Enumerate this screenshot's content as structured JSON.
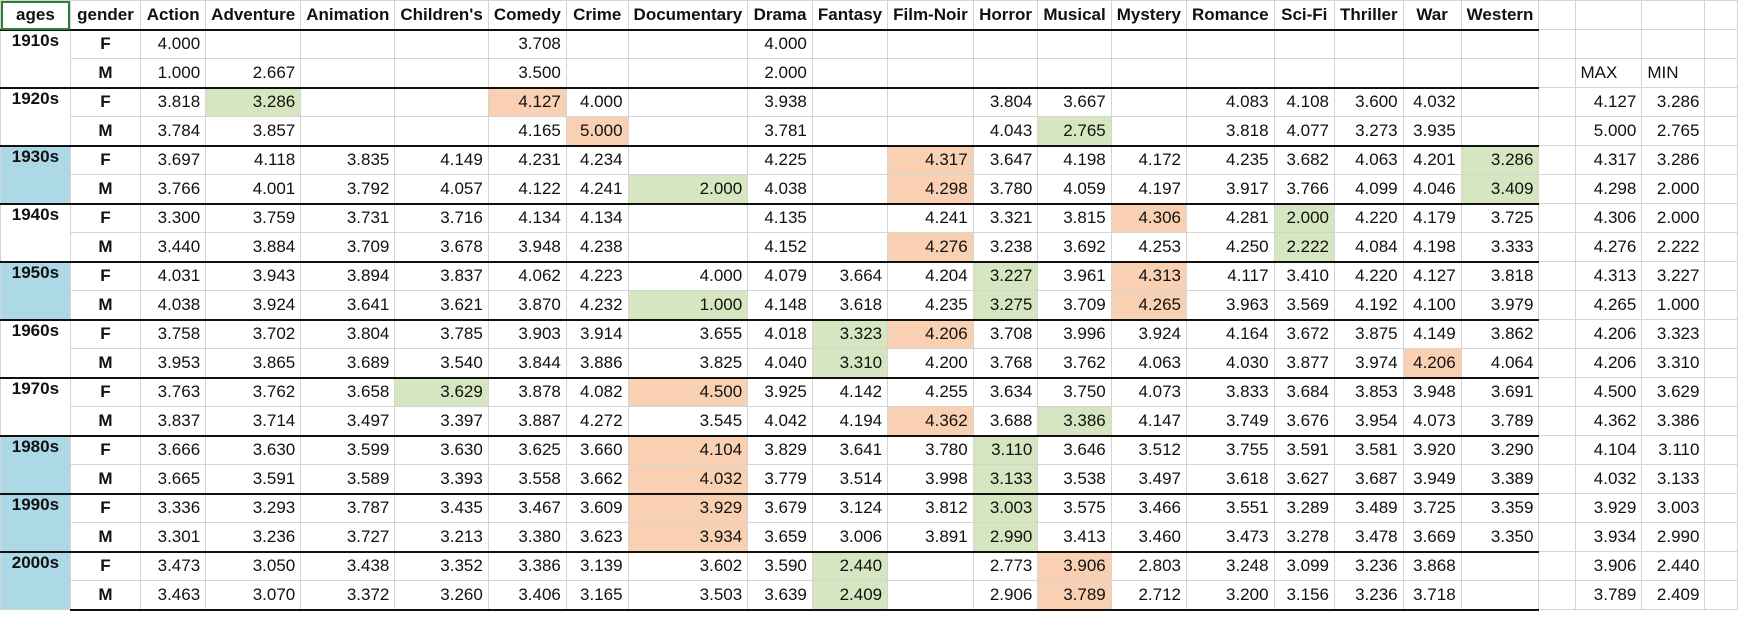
{
  "colors": {
    "high": "#f9d0b1",
    "low": "#d5e6c0",
    "decade_highlight": "#add8e6",
    "block_border": "#111111",
    "gridline": "#d4d4d4"
  },
  "headers": [
    "ages",
    "gender",
    "Action",
    "Adventure",
    "Animation",
    "Children's",
    "Comedy",
    "Crime",
    "Documentary",
    "Drama",
    "Fantasy",
    "Film-Noir",
    "Horror",
    "Musical",
    "Mystery",
    "Romance",
    "Sci-Fi",
    "Thriller",
    "War",
    "Western"
  ],
  "stat_labels": {
    "max": "MAX",
    "min": "MIN"
  },
  "decades": [
    {
      "label": "1910s",
      "highlight": false,
      "rows": [
        {
          "gender": "F",
          "values": [
            "4.000",
            "",
            "",
            "",
            "3.708",
            "",
            "",
            "4.000",
            "",
            "",
            "",
            "",
            "",
            "",
            "",
            "",
            "",
            ""
          ],
          "marks": {},
          "max": "",
          "min": ""
        },
        {
          "gender": "M",
          "values": [
            "1.000",
            "2.667",
            "",
            "",
            "3.500",
            "",
            "",
            "2.000",
            "",
            "",
            "",
            "",
            "",
            "",
            "",
            "",
            "",
            ""
          ],
          "marks": {},
          "max": "",
          "min": ""
        }
      ]
    },
    {
      "label": "1920s",
      "highlight": false,
      "rows": [
        {
          "gender": "F",
          "values": [
            "3.818",
            "3.286",
            "",
            "",
            "4.127",
            "4.000",
            "",
            "3.938",
            "",
            "",
            "3.804",
            "3.667",
            "",
            "4.083",
            "4.108",
            "3.600",
            "4.032",
            ""
          ],
          "marks": {
            "1": "low",
            "4": "high"
          },
          "max": "4.127",
          "min": "3.286"
        },
        {
          "gender": "M",
          "values": [
            "3.784",
            "3.857",
            "",
            "",
            "4.165",
            "5.000",
            "",
            "3.781",
            "",
            "",
            "4.043",
            "2.765",
            "",
            "3.818",
            "4.077",
            "3.273",
            "3.935",
            ""
          ],
          "marks": {
            "5": "high",
            "11": "low"
          },
          "max": "5.000",
          "min": "2.765"
        }
      ]
    },
    {
      "label": "1930s",
      "highlight": true,
      "rows": [
        {
          "gender": "F",
          "values": [
            "3.697",
            "4.118",
            "3.835",
            "4.149",
            "4.231",
            "4.234",
            "",
            "4.225",
            "",
            "4.317",
            "3.647",
            "4.198",
            "4.172",
            "4.235",
            "3.682",
            "4.063",
            "4.201",
            "3.286"
          ],
          "marks": {
            "9": "high",
            "17": "low"
          },
          "max": "4.317",
          "min": "3.286"
        },
        {
          "gender": "M",
          "values": [
            "3.766",
            "4.001",
            "3.792",
            "4.057",
            "4.122",
            "4.241",
            "2.000",
            "4.038",
            "",
            "4.298",
            "3.780",
            "4.059",
            "4.197",
            "3.917",
            "3.766",
            "4.099",
            "4.046",
            "3.409"
          ],
          "marks": {
            "6": "low",
            "9": "high",
            "17": "low"
          },
          "max": "4.298",
          "min": "2.000"
        }
      ]
    },
    {
      "label": "1940s",
      "highlight": false,
      "rows": [
        {
          "gender": "F",
          "values": [
            "3.300",
            "3.759",
            "3.731",
            "3.716",
            "4.134",
            "4.134",
            "",
            "4.135",
            "",
            "4.241",
            "3.321",
            "3.815",
            "4.306",
            "4.281",
            "2.000",
            "4.220",
            "4.179",
            "3.725"
          ],
          "marks": {
            "12": "high",
            "14": "low"
          },
          "max": "4.306",
          "min": "2.000"
        },
        {
          "gender": "M",
          "values": [
            "3.440",
            "3.884",
            "3.709",
            "3.678",
            "3.948",
            "4.238",
            "",
            "4.152",
            "",
            "4.276",
            "3.238",
            "3.692",
            "4.253",
            "4.250",
            "2.222",
            "4.084",
            "4.198",
            "3.333"
          ],
          "marks": {
            "9": "high",
            "14": "low"
          },
          "max": "4.276",
          "min": "2.222"
        }
      ]
    },
    {
      "label": "1950s",
      "highlight": true,
      "rows": [
        {
          "gender": "F",
          "values": [
            "4.031",
            "3.943",
            "3.894",
            "3.837",
            "4.062",
            "4.223",
            "4.000",
            "4.079",
            "3.664",
            "4.204",
            "3.227",
            "3.961",
            "4.313",
            "4.117",
            "3.410",
            "4.220",
            "4.127",
            "3.818"
          ],
          "marks": {
            "10": "low",
            "12": "high"
          },
          "max": "4.313",
          "min": "3.227"
        },
        {
          "gender": "M",
          "values": [
            "4.038",
            "3.924",
            "3.641",
            "3.621",
            "3.870",
            "4.232",
            "1.000",
            "4.148",
            "3.618",
            "4.235",
            "3.275",
            "3.709",
            "4.265",
            "3.963",
            "3.569",
            "4.192",
            "4.100",
            "3.979"
          ],
          "marks": {
            "6": "low",
            "10": "low",
            "12": "high"
          },
          "max": "4.265",
          "min": "1.000"
        }
      ]
    },
    {
      "label": "1960s",
      "highlight": false,
      "rows": [
        {
          "gender": "F",
          "values": [
            "3.758",
            "3.702",
            "3.804",
            "3.785",
            "3.903",
            "3.914",
            "3.655",
            "4.018",
            "3.323",
            "4.206",
            "3.708",
            "3.996",
            "3.924",
            "4.164",
            "3.672",
            "3.875",
            "4.149",
            "3.862"
          ],
          "marks": {
            "8": "low",
            "9": "high"
          },
          "max": "4.206",
          "min": "3.323"
        },
        {
          "gender": "M",
          "values": [
            "3.953",
            "3.865",
            "3.689",
            "3.540",
            "3.844",
            "3.886",
            "3.825",
            "4.040",
            "3.310",
            "4.200",
            "3.768",
            "3.762",
            "4.063",
            "4.030",
            "3.877",
            "3.974",
            "4.206",
            "4.064"
          ],
          "marks": {
            "8": "low",
            "16": "high"
          },
          "max": "4.206",
          "min": "3.310"
        }
      ]
    },
    {
      "label": "1970s",
      "highlight": false,
      "rows": [
        {
          "gender": "F",
          "values": [
            "3.763",
            "3.762",
            "3.658",
            "3.629",
            "3.878",
            "4.082",
            "4.500",
            "3.925",
            "4.142",
            "4.255",
            "3.634",
            "3.750",
            "4.073",
            "3.833",
            "3.684",
            "3.853",
            "3.948",
            "3.691"
          ],
          "marks": {
            "3": "low",
            "6": "high"
          },
          "max": "4.500",
          "min": "3.629"
        },
        {
          "gender": "M",
          "values": [
            "3.837",
            "3.714",
            "3.497",
            "3.397",
            "3.887",
            "4.272",
            "3.545",
            "4.042",
            "4.194",
            "4.362",
            "3.688",
            "3.386",
            "4.147",
            "3.749",
            "3.676",
            "3.954",
            "4.073",
            "3.789"
          ],
          "marks": {
            "9": "high",
            "11": "low"
          },
          "max": "4.362",
          "min": "3.386"
        }
      ]
    },
    {
      "label": "1980s",
      "highlight": true,
      "rows": [
        {
          "gender": "F",
          "values": [
            "3.666",
            "3.630",
            "3.599",
            "3.630",
            "3.625",
            "3.660",
            "4.104",
            "3.829",
            "3.641",
            "3.780",
            "3.110",
            "3.646",
            "3.512",
            "3.755",
            "3.591",
            "3.581",
            "3.920",
            "3.290"
          ],
          "marks": {
            "6": "high",
            "10": "low"
          },
          "max": "4.104",
          "min": "3.110"
        },
        {
          "gender": "M",
          "values": [
            "3.665",
            "3.591",
            "3.589",
            "3.393",
            "3.558",
            "3.662",
            "4.032",
            "3.779",
            "3.514",
            "3.998",
            "3.133",
            "3.538",
            "3.497",
            "3.618",
            "3.627",
            "3.687",
            "3.949",
            "3.389"
          ],
          "marks": {
            "6": "high",
            "10": "low"
          },
          "max": "4.032",
          "min": "3.133"
        }
      ]
    },
    {
      "label": "1990s",
      "highlight": true,
      "rows": [
        {
          "gender": "F",
          "values": [
            "3.336",
            "3.293",
            "3.787",
            "3.435",
            "3.467",
            "3.609",
            "3.929",
            "3.679",
            "3.124",
            "3.812",
            "3.003",
            "3.575",
            "3.466",
            "3.551",
            "3.289",
            "3.489",
            "3.725",
            "3.359"
          ],
          "marks": {
            "6": "high",
            "10": "low"
          },
          "max": "3.929",
          "min": "3.003"
        },
        {
          "gender": "M",
          "values": [
            "3.301",
            "3.236",
            "3.727",
            "3.213",
            "3.380",
            "3.623",
            "3.934",
            "3.659",
            "3.006",
            "3.891",
            "2.990",
            "3.413",
            "3.460",
            "3.473",
            "3.278",
            "3.478",
            "3.669",
            "3.350"
          ],
          "marks": {
            "6": "high",
            "10": "low"
          },
          "max": "3.934",
          "min": "2.990"
        }
      ]
    },
    {
      "label": "2000s",
      "highlight": true,
      "rows": [
        {
          "gender": "F",
          "values": [
            "3.473",
            "3.050",
            "3.438",
            "3.352",
            "3.386",
            "3.139",
            "3.602",
            "3.590",
            "2.440",
            "",
            "2.773",
            "3.906",
            "2.803",
            "3.248",
            "3.099",
            "3.236",
            "3.868",
            ""
          ],
          "marks": {
            "8": "low",
            "11": "high"
          },
          "max": "3.906",
          "min": "2.440"
        },
        {
          "gender": "M",
          "values": [
            "3.463",
            "3.070",
            "3.372",
            "3.260",
            "3.406",
            "3.165",
            "3.503",
            "3.639",
            "2.409",
            "",
            "2.906",
            "3.789",
            "2.712",
            "3.200",
            "3.156",
            "3.236",
            "3.718",
            ""
          ],
          "marks": {
            "8": "low",
            "11": "high"
          },
          "max": "3.789",
          "min": "2.409"
        }
      ]
    }
  ]
}
